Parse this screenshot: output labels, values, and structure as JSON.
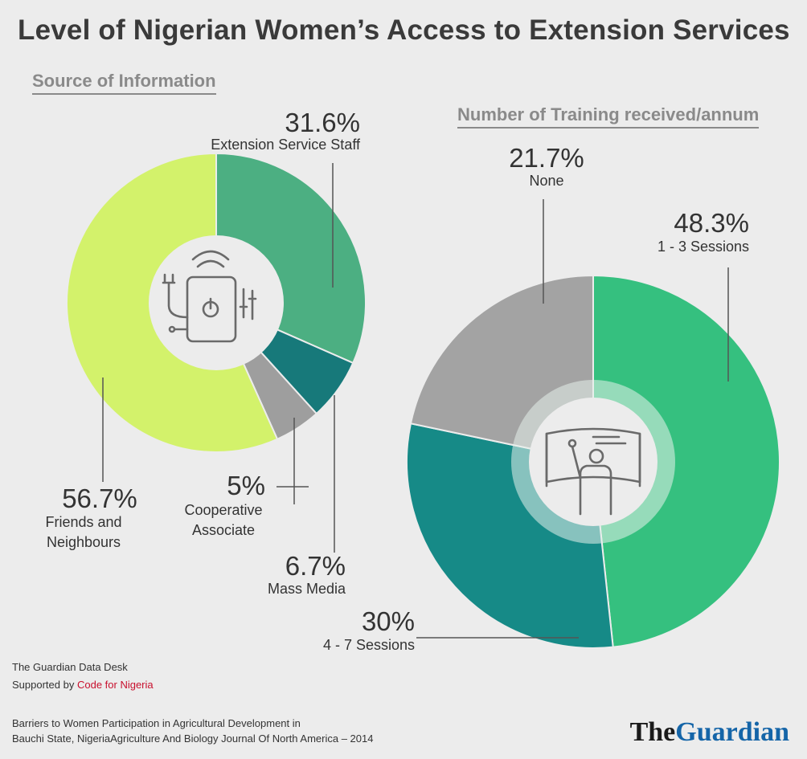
{
  "title": "Level of Nigerian Women’s Access to Extension Services",
  "chart_data": [
    {
      "type": "pie",
      "title": "Source of Information",
      "slices": [
        {
          "label": "Extension Service Staff",
          "value": 31.6,
          "value_label": "31.6%",
          "color": "#4caf82"
        },
        {
          "label": "Mass Media",
          "value": 6.7,
          "value_label": "6.7%",
          "color": "#17797a"
        },
        {
          "label": "Cooperative Associate",
          "value": 5,
          "value_label": "5%",
          "color": "#9e9e9e"
        },
        {
          "label": "Friends and Neighbours",
          "value": 56.7,
          "value_label": "56.7%",
          "color": "#d3f26b"
        }
      ],
      "center_icon": "smart-device-icon"
    },
    {
      "type": "pie",
      "title": "Number of Training received/annum",
      "slices": [
        {
          "label": "1 - 3 Sessions",
          "value": 48.3,
          "value_label": "48.3%",
          "color": "#35c07f"
        },
        {
          "label": "4 - 7 Sessions",
          "value": 30,
          "value_label": "30%",
          "color": "#168a87"
        },
        {
          "label": "None",
          "value": 21.7,
          "value_label": "21.7%",
          "color": "#a3a3a3"
        }
      ],
      "center_icon": "training-presenter-icon"
    }
  ],
  "footer": {
    "desk": "The Guardian Data Desk",
    "supported_by": "Supported by",
    "supporter": "Code for Nigeria",
    "source_line1": "Barriers to Women Participation in Agricultural Development in",
    "source_line2": "Bauchi State, NigeriaAgriculture And Biology Journal Of North America – 2014"
  },
  "logo": {
    "the": "The",
    "guardian": "Guardian"
  }
}
